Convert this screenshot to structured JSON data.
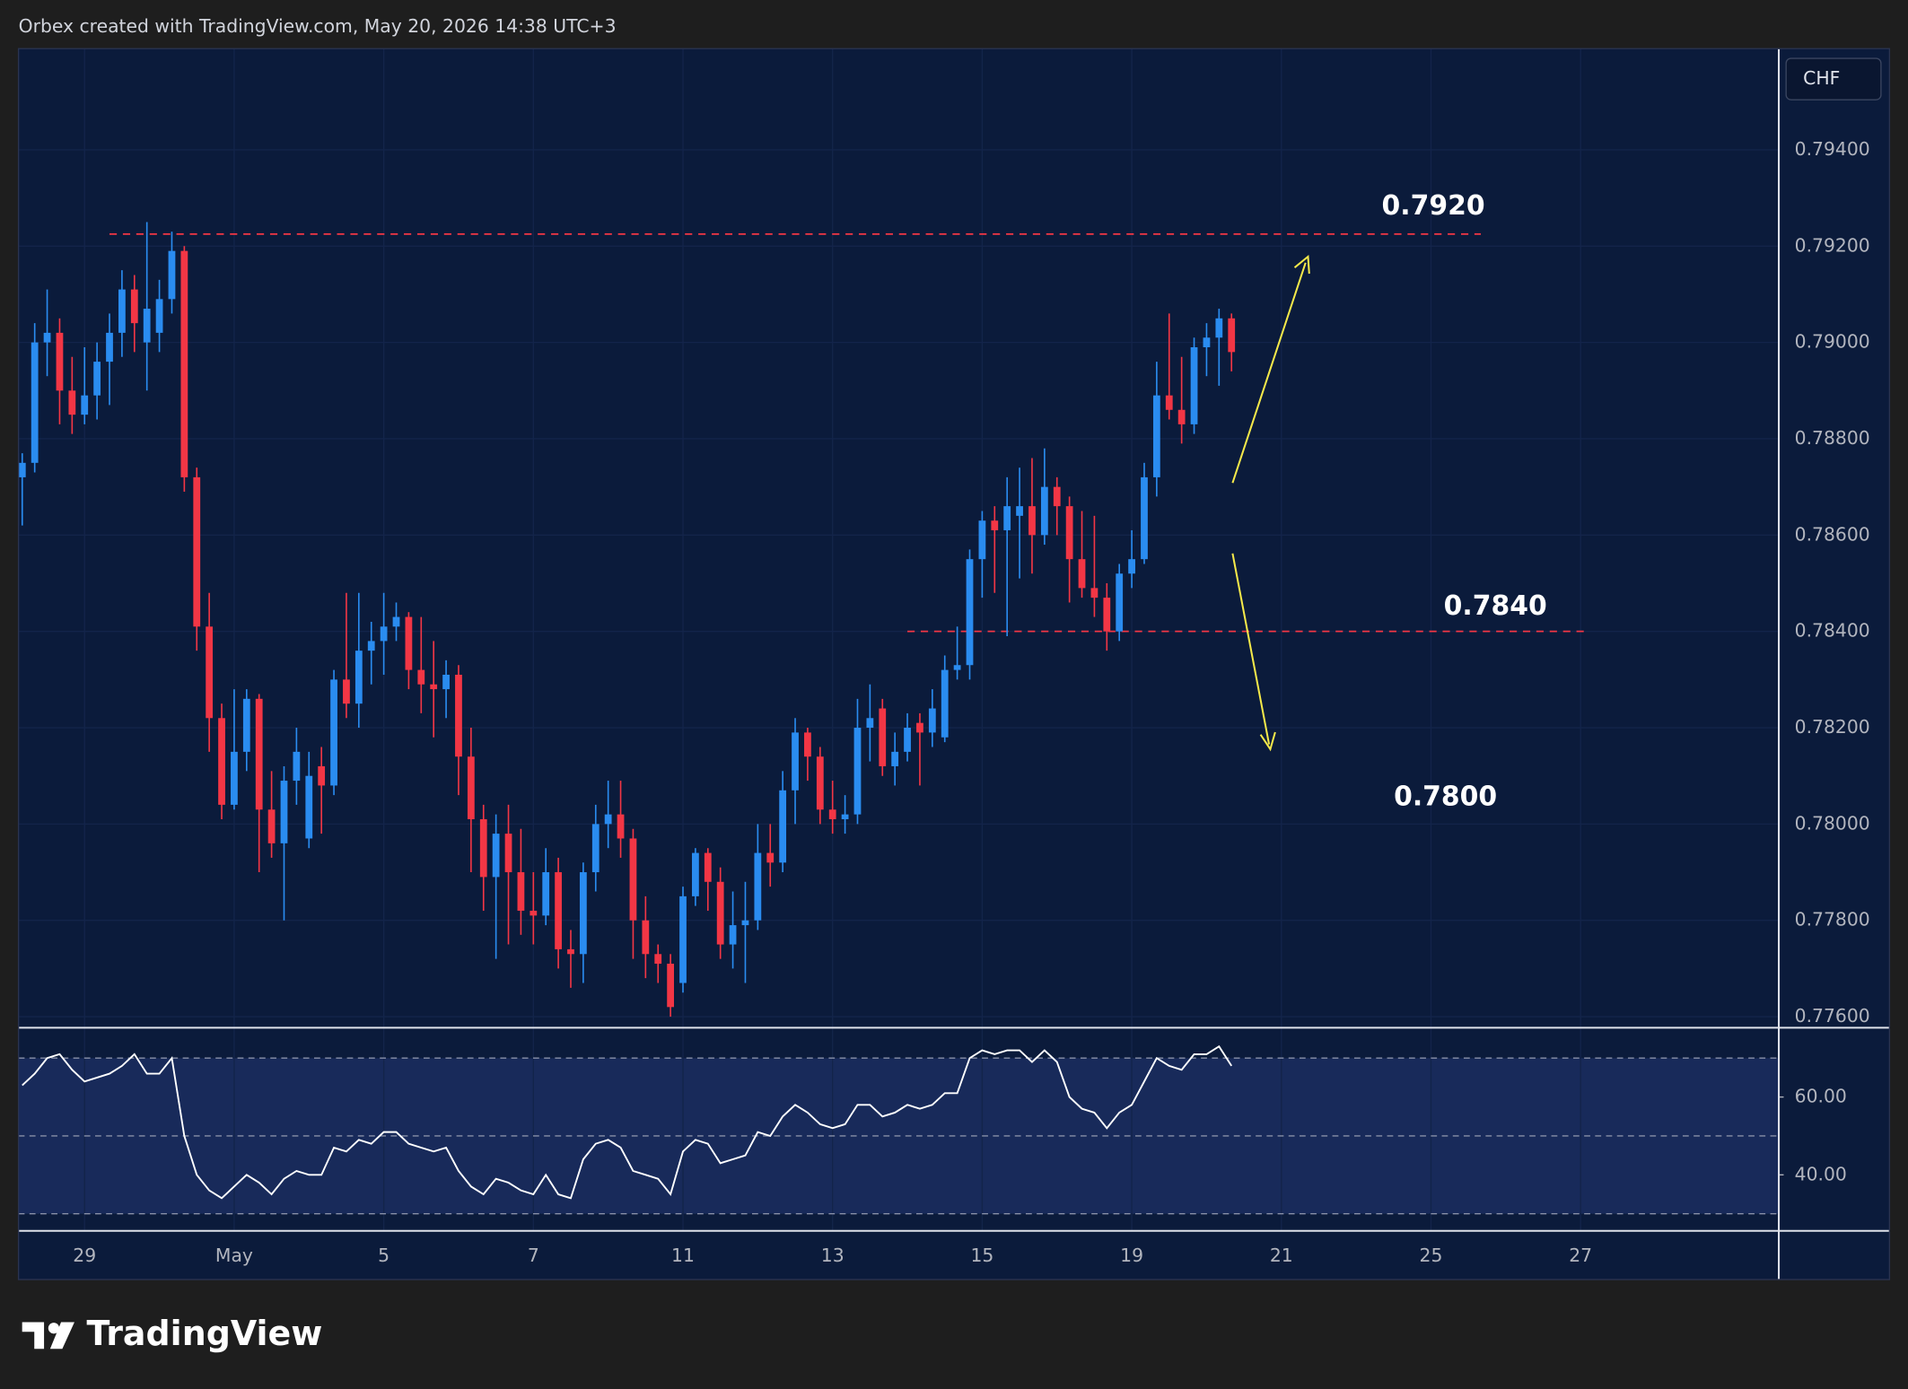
{
  "header": "Orbex created with TradingView.com, May 20, 2026 14:38 UTC+3",
  "brand": "TradingView",
  "chart_data": [
    {
      "type": "candlestick",
      "currency": "CHF",
      "up_color": "#2a8cf0",
      "down_color": "#f23645",
      "open": [
        0.7872,
        0.7875,
        0.79,
        0.7902,
        0.789,
        0.7885,
        0.7889,
        0.7896,
        0.7902,
        0.7911,
        0.79,
        0.7902,
        0.7909,
        0.7919,
        0.7872,
        0.7841,
        0.7822,
        0.7804,
        0.7815,
        0.7826,
        0.7803,
        0.7796,
        0.7809,
        0.7797,
        0.7812,
        0.7808,
        0.783,
        0.7825,
        0.7836,
        0.7838,
        0.7841,
        0.7843,
        0.7832,
        0.7829,
        0.7828,
        0.7831,
        0.7814,
        0.7801,
        0.7789,
        0.7798,
        0.779,
        0.7782,
        0.7781,
        0.779,
        0.7774,
        0.7773,
        0.779,
        0.78,
        0.7802,
        0.7797,
        0.778,
        0.7773,
        0.7771,
        0.7767,
        0.7785,
        0.7794,
        0.7788,
        0.7775,
        0.7779,
        0.778,
        0.7794,
        0.7792,
        0.7807,
        0.7819,
        0.7814,
        0.7803,
        0.7801,
        0.7802,
        0.782,
        0.7824,
        0.7812,
        0.7815,
        0.7821,
        0.7819,
        0.7818,
        0.7832,
        0.7833,
        0.7855,
        0.7863,
        0.7861,
        0.7864,
        0.7866,
        0.786,
        0.787,
        0.7866,
        0.7855,
        0.7849,
        0.7847,
        0.784,
        0.7852,
        0.7855,
        0.7872,
        0.7889,
        0.7886,
        0.7883,
        0.7899,
        0.7901,
        0.7905
      ],
      "high": [
        0.7877,
        0.7904,
        0.7911,
        0.7905,
        0.7897,
        0.7899,
        0.79,
        0.7906,
        0.7915,
        0.7914,
        0.7925,
        0.7913,
        0.7923,
        0.792,
        0.7874,
        0.7848,
        0.7825,
        0.7828,
        0.7828,
        0.7827,
        0.7811,
        0.7812,
        0.782,
        0.7815,
        0.7816,
        0.7832,
        0.7848,
        0.7848,
        0.7842,
        0.7848,
        0.7846,
        0.7844,
        0.7843,
        0.7838,
        0.7834,
        0.7833,
        0.782,
        0.7804,
        0.7802,
        0.7804,
        0.7799,
        0.779,
        0.7795,
        0.7793,
        0.7778,
        0.7792,
        0.7804,
        0.7809,
        0.7809,
        0.7799,
        0.7785,
        0.7775,
        0.7773,
        0.7787,
        0.7795,
        0.7795,
        0.7791,
        0.7786,
        0.7788,
        0.78,
        0.78,
        0.7811,
        0.7822,
        0.782,
        0.7816,
        0.7809,
        0.7806,
        0.7826,
        0.7829,
        0.7826,
        0.7819,
        0.7823,
        0.7823,
        0.7828,
        0.7835,
        0.7841,
        0.7857,
        0.7865,
        0.7866,
        0.7872,
        0.7874,
        0.7876,
        0.7878,
        0.7872,
        0.7868,
        0.7865,
        0.7864,
        0.785,
        0.7854,
        0.7861,
        0.7875,
        0.7896,
        0.7906,
        0.7897,
        0.7901,
        0.7904,
        0.7907,
        0.7906
      ],
      "low": [
        0.7862,
        0.7873,
        0.7893,
        0.7883,
        0.7881,
        0.7883,
        0.7884,
        0.7887,
        0.7897,
        0.7898,
        0.789,
        0.7898,
        0.7906,
        0.7869,
        0.7836,
        0.7815,
        0.7801,
        0.7803,
        0.7811,
        0.779,
        0.7793,
        0.778,
        0.7804,
        0.7795,
        0.7798,
        0.7806,
        0.7822,
        0.782,
        0.7829,
        0.7831,
        0.7838,
        0.7828,
        0.7823,
        0.7818,
        0.7822,
        0.7806,
        0.779,
        0.7782,
        0.7772,
        0.7775,
        0.7777,
        0.7775,
        0.7779,
        0.777,
        0.7766,
        0.7767,
        0.7786,
        0.7795,
        0.7793,
        0.7772,
        0.7768,
        0.7767,
        0.776,
        0.7765,
        0.7783,
        0.7782,
        0.7772,
        0.777,
        0.7767,
        0.7778,
        0.7787,
        0.779,
        0.78,
        0.7809,
        0.78,
        0.7798,
        0.7798,
        0.78,
        0.7813,
        0.781,
        0.7808,
        0.7813,
        0.7808,
        0.7816,
        0.7817,
        0.783,
        0.783,
        0.7847,
        0.7848,
        0.7839,
        0.7851,
        0.7852,
        0.7858,
        0.786,
        0.7846,
        0.7847,
        0.7843,
        0.7836,
        0.7838,
        0.7849,
        0.7854,
        0.7868,
        0.7884,
        0.7879,
        0.7881,
        0.7893,
        0.7891,
        0.7894
      ],
      "close": [
        0.7875,
        0.79,
        0.7902,
        0.789,
        0.7885,
        0.7889,
        0.7896,
        0.7902,
        0.7911,
        0.7904,
        0.7907,
        0.7909,
        0.7919,
        0.7872,
        0.7841,
        0.7822,
        0.7804,
        0.7815,
        0.7826,
        0.7803,
        0.7796,
        0.7809,
        0.7815,
        0.781,
        0.7808,
        0.783,
        0.7825,
        0.7836,
        0.7838,
        0.7841,
        0.7843,
        0.7832,
        0.7829,
        0.7828,
        0.7831,
        0.7814,
        0.7801,
        0.7789,
        0.7798,
        0.779,
        0.7782,
        0.7781,
        0.779,
        0.7774,
        0.7773,
        0.779,
        0.78,
        0.7802,
        0.7797,
        0.778,
        0.7773,
        0.7771,
        0.7762,
        0.7785,
        0.7794,
        0.7788,
        0.7775,
        0.7779,
        0.778,
        0.7794,
        0.7792,
        0.7807,
        0.7819,
        0.7814,
        0.7803,
        0.7801,
        0.7802,
        0.782,
        0.7822,
        0.7812,
        0.7815,
        0.782,
        0.7819,
        0.7824,
        0.7832,
        0.7833,
        0.7855,
        0.7863,
        0.7861,
        0.7866,
        0.7866,
        0.786,
        0.787,
        0.7866,
        0.7855,
        0.7849,
        0.7847,
        0.784,
        0.7852,
        0.7855,
        0.7872,
        0.7889,
        0.7886,
        0.7883,
        0.7899,
        0.7901,
        0.7905,
        0.7898
      ],
      "ylim": [
        0.77577,
        0.7961
      ],
      "yticks": [
        {
          "value": 0.794,
          "label": "0.79400"
        },
        {
          "value": 0.792,
          "label": "0.79200"
        },
        {
          "value": 0.79,
          "label": "0.79000"
        },
        {
          "value": 0.788,
          "label": "0.78800"
        },
        {
          "value": 0.786,
          "label": "0.78600"
        },
        {
          "value": 0.784,
          "label": "0.78400"
        },
        {
          "value": 0.782,
          "label": "0.78200"
        },
        {
          "value": 0.78,
          "label": "0.78000"
        },
        {
          "value": 0.778,
          "label": "0.77800"
        },
        {
          "value": 0.776,
          "label": "0.77600"
        }
      ],
      "xlim": [
        -0.3,
        140.9
      ],
      "xticks": [
        {
          "value": 5,
          "label": "29"
        },
        {
          "value": 17,
          "label": "May"
        },
        {
          "value": 29,
          "label": "5"
        },
        {
          "value": 41,
          "label": "7"
        },
        {
          "value": 53,
          "label": "11"
        },
        {
          "value": 65,
          "label": "13"
        },
        {
          "value": 77,
          "label": "15"
        },
        {
          "value": 89,
          "label": "19"
        },
        {
          "value": 101,
          "label": "21"
        },
        {
          "value": 113,
          "label": "25"
        },
        {
          "value": 125,
          "label": "27"
        }
      ],
      "level_lines": [
        0.79225,
        0.784
      ],
      "annotations": [
        "0.7920",
        "0.7840",
        "0.7800"
      ]
    },
    {
      "type": "line",
      "color": "#ffffff",
      "values": [
        63,
        66,
        70,
        71,
        67,
        64,
        65,
        66,
        68,
        71,
        66,
        66,
        70,
        50,
        40,
        36,
        34,
        37,
        40,
        38,
        35,
        39,
        41,
        40,
        40,
        47,
        46,
        49,
        48,
        51,
        51,
        48,
        47,
        46,
        47,
        41,
        37,
        35,
        39,
        38,
        36,
        35,
        40,
        35,
        34,
        44,
        48,
        49,
        47,
        41,
        40,
        39,
        35,
        46,
        49,
        48,
        43,
        44,
        45,
        51,
        50,
        55,
        58,
        56,
        53,
        52,
        53,
        58,
        58,
        55,
        56,
        58,
        57,
        58,
        61,
        61,
        70,
        72,
        71,
        72,
        72,
        69,
        72,
        69,
        60,
        57,
        56,
        52,
        56,
        58,
        64,
        70,
        68,
        67,
        71,
        71,
        73,
        68
      ],
      "ylim": [
        25.6,
        77.8
      ],
      "yticks": [
        {
          "value": 60,
          "label": "60.00"
        },
        {
          "value": 40,
          "label": "40.00"
        }
      ],
      "levels": [
        70,
        50,
        30
      ]
    }
  ]
}
